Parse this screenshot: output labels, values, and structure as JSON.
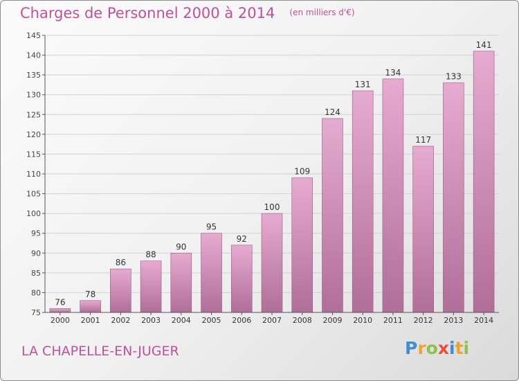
{
  "title": "Charges de Personnel 2000 à 2014",
  "unit": "(en milliers d'€)",
  "commune": "LA CHAPELLE-EN-JUGER",
  "logo": {
    "letters": [
      "P",
      "r",
      "o",
      "x",
      "i",
      "t",
      "i"
    ],
    "colors": [
      "#3a8fd6",
      "#f2a12e",
      "#8bc34a",
      "#e94e3c",
      "#3a8fd6",
      "#f2a12e",
      "#8bc34a"
    ]
  },
  "colors": {
    "bar_top": "#e6abd0",
    "bar_bottom": "#b06e99",
    "text": "#c0509a"
  },
  "chart_data": {
    "type": "bar",
    "categories": [
      "2000",
      "2001",
      "2002",
      "2003",
      "2004",
      "2005",
      "2006",
      "2007",
      "2008",
      "2009",
      "2010",
      "2011",
      "2012",
      "2013",
      "2014"
    ],
    "values": [
      76,
      78,
      86,
      88,
      90,
      95,
      92,
      100,
      109,
      124,
      131,
      134,
      117,
      133,
      141
    ],
    "ylim": [
      75,
      145
    ],
    "yticks": [
      75,
      80,
      85,
      90,
      95,
      100,
      105,
      110,
      115,
      120,
      125,
      130,
      135,
      140,
      145
    ],
    "grid": true,
    "xlabel": "",
    "ylabel": ""
  }
}
